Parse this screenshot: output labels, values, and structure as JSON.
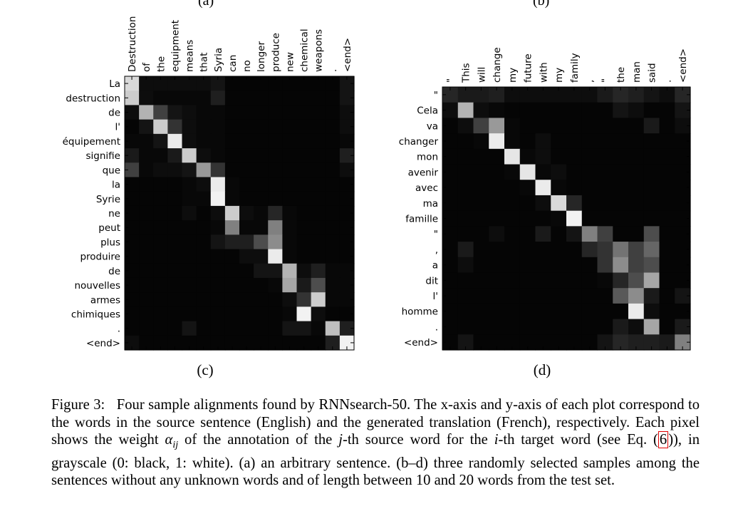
{
  "top_labels": [
    "(a)",
    "(b)"
  ],
  "figure": {
    "label": "Figure 3:",
    "caption_part1": "Four sample alignments found by RNNsearch-50. The x-axis and y-axis of each plot correspond to the words in the source sentence (English) and the generated translation (French), respectively. Each pixel shows the weight ",
    "alpha_symbol": "α",
    "alpha_sub": "ij",
    "caption_part2": " of the annotation of the ",
    "j_symbol": "j",
    "caption_part3": "-th source word for the ",
    "i_symbol": "i",
    "caption_part4": "-th target word (see Eq. (",
    "eq_ref": "6",
    "caption_part5": ")), in grayscale (0: black, 1: white). (a) an arbitrary sentence. (b–d) three randomly selected samples among the sentences without any unknown words and of length between 10 and 20 words from the test set."
  },
  "chart_data": [
    {
      "type": "heatmap",
      "panel": "(c)",
      "x_labels": [
        "Destruction",
        "of",
        "the",
        "equipment",
        "means",
        "that",
        "Syria",
        "can",
        "no",
        "longer",
        "produce",
        "new",
        "chemical",
        "weapons",
        ".",
        "<end>"
      ],
      "y_labels": [
        "La",
        "destruction",
        "de",
        "l'",
        "équipement",
        "signifie",
        "que",
        "la",
        "Syrie",
        "ne",
        "peut",
        "plus",
        "produire",
        "de",
        "nouvelles",
        "armes",
        "chimiques",
        ".",
        "<end>"
      ],
      "value_range": [
        0,
        1
      ],
      "values": [
        [
          0.85,
          0.05,
          0.05,
          0.05,
          0.05,
          0.05,
          0.08,
          0.02,
          0.02,
          0.02,
          0.02,
          0.02,
          0.02,
          0.02,
          0.02,
          0.08
        ],
        [
          0.8,
          0.05,
          0.03,
          0.03,
          0.03,
          0.03,
          0.12,
          0.02,
          0.02,
          0.02,
          0.02,
          0.02,
          0.02,
          0.02,
          0.02,
          0.08
        ],
        [
          0.05,
          0.7,
          0.25,
          0.08,
          0.05,
          0.03,
          0.03,
          0.02,
          0.02,
          0.02,
          0.02,
          0.02,
          0.02,
          0.02,
          0.02,
          0.05
        ],
        [
          0.02,
          0.08,
          0.8,
          0.2,
          0.05,
          0.03,
          0.03,
          0.02,
          0.02,
          0.02,
          0.02,
          0.02,
          0.02,
          0.02,
          0.02,
          0.05
        ],
        [
          0.03,
          0.03,
          0.08,
          0.92,
          0.05,
          0.03,
          0.03,
          0.02,
          0.02,
          0.02,
          0.02,
          0.02,
          0.02,
          0.02,
          0.02,
          0.03
        ],
        [
          0.1,
          0.03,
          0.03,
          0.1,
          0.8,
          0.05,
          0.03,
          0.02,
          0.02,
          0.02,
          0.02,
          0.02,
          0.02,
          0.02,
          0.02,
          0.12
        ],
        [
          0.25,
          0.03,
          0.05,
          0.05,
          0.08,
          0.6,
          0.2,
          0.02,
          0.02,
          0.02,
          0.02,
          0.02,
          0.02,
          0.02,
          0.02,
          0.05
        ],
        [
          0.02,
          0.02,
          0.02,
          0.02,
          0.03,
          0.05,
          0.92,
          0.03,
          0.02,
          0.02,
          0.02,
          0.02,
          0.02,
          0.02,
          0.02,
          0.02
        ],
        [
          0.02,
          0.02,
          0.02,
          0.02,
          0.03,
          0.03,
          0.95,
          0.03,
          0.02,
          0.02,
          0.02,
          0.02,
          0.02,
          0.02,
          0.02,
          0.02
        ],
        [
          0.02,
          0.02,
          0.02,
          0.02,
          0.05,
          0.02,
          0.05,
          0.8,
          0.05,
          0.03,
          0.15,
          0.03,
          0.02,
          0.02,
          0.02,
          0.02
        ],
        [
          0.02,
          0.02,
          0.02,
          0.02,
          0.02,
          0.02,
          0.03,
          0.5,
          0.03,
          0.03,
          0.5,
          0.03,
          0.02,
          0.02,
          0.02,
          0.02
        ],
        [
          0.02,
          0.02,
          0.02,
          0.02,
          0.02,
          0.02,
          0.08,
          0.12,
          0.12,
          0.3,
          0.55,
          0.03,
          0.02,
          0.02,
          0.02,
          0.02
        ],
        [
          0.02,
          0.02,
          0.02,
          0.02,
          0.02,
          0.02,
          0.02,
          0.02,
          0.05,
          0.05,
          0.92,
          0.03,
          0.02,
          0.02,
          0.02,
          0.02
        ],
        [
          0.02,
          0.02,
          0.02,
          0.02,
          0.02,
          0.02,
          0.02,
          0.02,
          0.02,
          0.08,
          0.08,
          0.7,
          0.05,
          0.12,
          0.03,
          0.03
        ],
        [
          0.02,
          0.02,
          0.02,
          0.02,
          0.02,
          0.02,
          0.02,
          0.02,
          0.02,
          0.02,
          0.03,
          0.65,
          0.1,
          0.3,
          0.03,
          0.03
        ],
        [
          0.02,
          0.02,
          0.02,
          0.02,
          0.02,
          0.02,
          0.02,
          0.02,
          0.02,
          0.02,
          0.02,
          0.05,
          0.2,
          0.8,
          0.03,
          0.03
        ],
        [
          0.02,
          0.02,
          0.02,
          0.02,
          0.02,
          0.02,
          0.02,
          0.02,
          0.02,
          0.02,
          0.02,
          0.03,
          0.95,
          0.05,
          0.02,
          0.02
        ],
        [
          0.02,
          0.02,
          0.02,
          0.02,
          0.08,
          0.02,
          0.02,
          0.02,
          0.02,
          0.02,
          0.02,
          0.08,
          0.08,
          0.03,
          0.75,
          0.12
        ],
        [
          0.05,
          0.02,
          0.02,
          0.02,
          0.02,
          0.02,
          0.02,
          0.02,
          0.02,
          0.02,
          0.02,
          0.02,
          0.02,
          0.02,
          0.12,
          0.95
        ]
      ]
    },
    {
      "type": "heatmap",
      "panel": "(d)",
      "x_labels": [
        "\"",
        "This",
        "will",
        "change",
        "my",
        "future",
        "with",
        "my",
        "family",
        ",",
        "\"",
        "the",
        "man",
        "said",
        ".",
        "<end>"
      ],
      "y_labels": [
        "\"",
        "Cela",
        "va",
        "changer",
        "mon",
        "avenir",
        "avec",
        "ma",
        "famille",
        "\"",
        ",",
        "a",
        "dit",
        "l'",
        "homme",
        ".",
        "<end>"
      ],
      "value_range": [
        0,
        1
      ],
      "values": [
        [
          0.15,
          0.1,
          0.1,
          0.12,
          0.05,
          0.05,
          0.05,
          0.05,
          0.05,
          0.05,
          0.1,
          0.15,
          0.12,
          0.08,
          0.05,
          0.15
        ],
        [
          0.05,
          0.7,
          0.05,
          0.03,
          0.02,
          0.02,
          0.02,
          0.02,
          0.02,
          0.02,
          0.02,
          0.08,
          0.05,
          0.02,
          0.02,
          0.08
        ],
        [
          0.02,
          0.05,
          0.25,
          0.6,
          0.03,
          0.02,
          0.02,
          0.02,
          0.02,
          0.02,
          0.02,
          0.02,
          0.02,
          0.1,
          0.02,
          0.05
        ],
        [
          0.02,
          0.02,
          0.03,
          0.92,
          0.03,
          0.02,
          0.05,
          0.02,
          0.02,
          0.02,
          0.02,
          0.02,
          0.02,
          0.02,
          0.02,
          0.02
        ],
        [
          0.02,
          0.02,
          0.02,
          0.02,
          0.9,
          0.03,
          0.05,
          0.02,
          0.02,
          0.02,
          0.02,
          0.02,
          0.02,
          0.02,
          0.02,
          0.02
        ],
        [
          0.02,
          0.02,
          0.02,
          0.02,
          0.03,
          0.9,
          0.03,
          0.05,
          0.02,
          0.02,
          0.02,
          0.02,
          0.02,
          0.02,
          0.02,
          0.02
        ],
        [
          0.02,
          0.02,
          0.02,
          0.02,
          0.02,
          0.03,
          0.92,
          0.03,
          0.02,
          0.02,
          0.02,
          0.02,
          0.02,
          0.02,
          0.02,
          0.02
        ],
        [
          0.02,
          0.02,
          0.02,
          0.02,
          0.02,
          0.02,
          0.05,
          0.85,
          0.15,
          0.02,
          0.02,
          0.02,
          0.02,
          0.02,
          0.02,
          0.02
        ],
        [
          0.02,
          0.02,
          0.02,
          0.02,
          0.02,
          0.02,
          0.02,
          0.03,
          0.95,
          0.02,
          0.02,
          0.02,
          0.02,
          0.02,
          0.02,
          0.02
        ],
        [
          0.02,
          0.02,
          0.02,
          0.05,
          0.02,
          0.02,
          0.1,
          0.02,
          0.08,
          0.5,
          0.25,
          0.02,
          0.02,
          0.3,
          0.02,
          0.02
        ],
        [
          0.02,
          0.1,
          0.02,
          0.02,
          0.02,
          0.02,
          0.02,
          0.02,
          0.02,
          0.15,
          0.2,
          0.45,
          0.25,
          0.4,
          0.02,
          0.02
        ],
        [
          0.02,
          0.05,
          0.02,
          0.02,
          0.02,
          0.02,
          0.02,
          0.02,
          0.02,
          0.02,
          0.2,
          0.55,
          0.25,
          0.3,
          0.02,
          0.02
        ],
        [
          0.02,
          0.02,
          0.02,
          0.02,
          0.02,
          0.02,
          0.02,
          0.02,
          0.02,
          0.02,
          0.03,
          0.15,
          0.3,
          0.65,
          0.02,
          0.02
        ],
        [
          0.02,
          0.02,
          0.02,
          0.02,
          0.02,
          0.02,
          0.02,
          0.02,
          0.02,
          0.02,
          0.02,
          0.35,
          0.55,
          0.1,
          0.02,
          0.08
        ],
        [
          0.02,
          0.02,
          0.02,
          0.02,
          0.02,
          0.02,
          0.02,
          0.02,
          0.02,
          0.02,
          0.02,
          0.02,
          0.92,
          0.05,
          0.02,
          0.02
        ],
        [
          0.02,
          0.02,
          0.02,
          0.02,
          0.02,
          0.02,
          0.02,
          0.02,
          0.02,
          0.02,
          0.02,
          0.1,
          0.05,
          0.65,
          0.02,
          0.1
        ],
        [
          0.02,
          0.08,
          0.02,
          0.02,
          0.02,
          0.02,
          0.02,
          0.02,
          0.02,
          0.02,
          0.08,
          0.15,
          0.12,
          0.12,
          0.1,
          0.5
        ]
      ]
    }
  ]
}
